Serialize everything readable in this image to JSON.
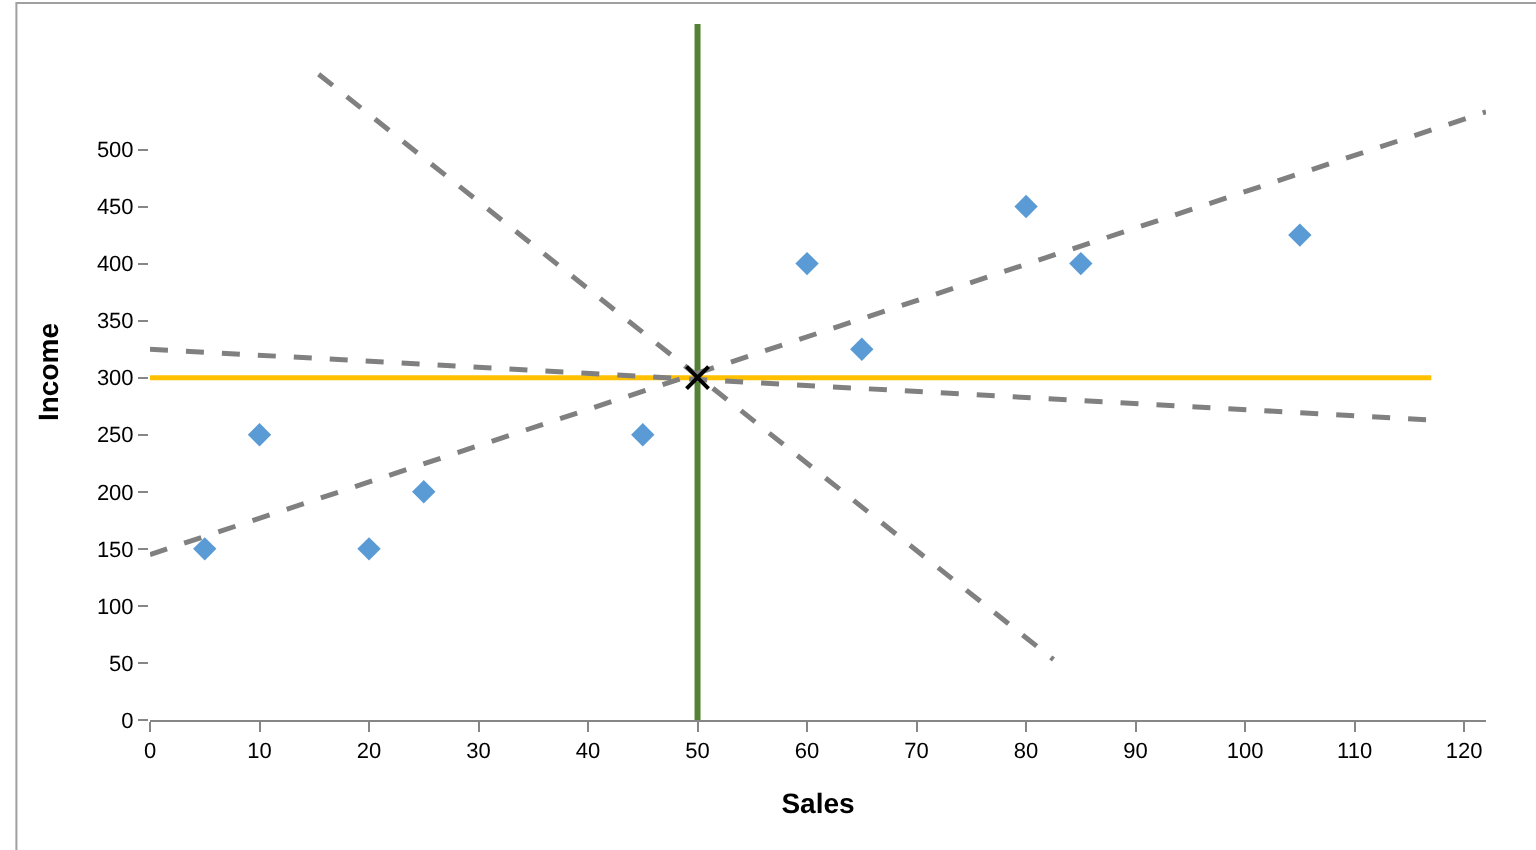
{
  "chart_data": {
    "type": "scatter",
    "xlabel": "Sales",
    "ylabel": "Income",
    "xlim": [
      0,
      122
    ],
    "ylim": [
      0,
      610
    ],
    "xticks": [
      0,
      10,
      20,
      30,
      40,
      50,
      60,
      70,
      80,
      90,
      100,
      110,
      120
    ],
    "yticks": [
      0,
      50,
      100,
      150,
      200,
      250,
      300,
      350,
      400,
      450,
      500
    ],
    "grid": false,
    "series": [
      {
        "type": "line",
        "color": "#ffc000",
        "line_style": "solid",
        "marker": "none",
        "x": [
          0,
          117
        ],
        "values": [
          300,
          300
        ]
      },
      {
        "type": "line",
        "color": "#808080",
        "line_style": "dashed",
        "marker": "none",
        "x": [
          0,
          122
        ],
        "values": [
          145,
          533
        ]
      },
      {
        "type": "line",
        "color": "#808080",
        "line_style": "dashed",
        "marker": "none",
        "x": [
          0,
          117
        ],
        "values": [
          325,
          263
        ]
      },
      {
        "type": "line",
        "color": "#808080",
        "line_style": "dashed",
        "marker": "none",
        "x": [
          15.4,
          82.5
        ],
        "values": [
          566,
          53
        ]
      },
      {
        "color": "#5b9bd5",
        "marker": "diamond",
        "x": [
          5,
          10,
          20,
          25,
          45,
          60,
          65,
          80,
          85,
          105
        ],
        "values": [
          150,
          250,
          150,
          200,
          250,
          400,
          325,
          450,
          400,
          425
        ]
      },
      {
        "color": "#000000",
        "marker": "cross",
        "x": [
          50
        ],
        "values": [
          300
        ]
      }
    ],
    "ref_lines": [
      {
        "axis": "x",
        "value": 50,
        "color": "#548235",
        "line_style": "solid"
      }
    ]
  }
}
